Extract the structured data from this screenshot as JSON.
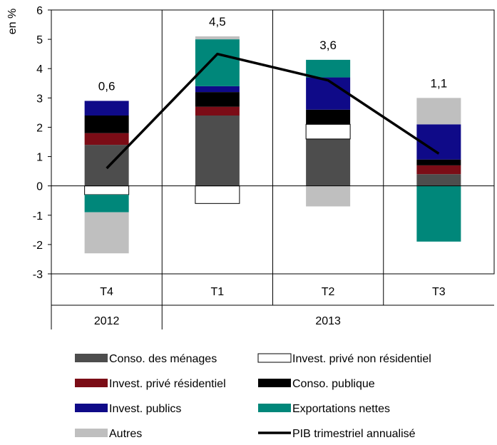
{
  "chart_data": {
    "type": "bar",
    "stacked": true,
    "ylabel": "en %",
    "ylim": [
      -3,
      6
    ],
    "yticks": [
      -3,
      -2,
      -1,
      0,
      1,
      2,
      3,
      4,
      5,
      6
    ],
    "ytick_labels": [
      "-3",
      "-2",
      "-1",
      "0",
      "1",
      "2",
      "3",
      "4",
      "5",
      "6"
    ],
    "categories": [
      "T4",
      "T1",
      "T2",
      "T3"
    ],
    "years": [
      {
        "label": "2012",
        "span": [
          0,
          0
        ]
      },
      {
        "label": "2013",
        "span": [
          1,
          3
        ]
      }
    ],
    "grid": "vertical-separators",
    "legend_position": "bottom",
    "series": [
      {
        "name": "Conso. des ménages",
        "color": "#4d4d4d",
        "values": [
          1.4,
          2.4,
          1.6,
          0.4
        ]
      },
      {
        "name": "Invest. privé non résidentiel",
        "color": "#ffffff",
        "values": [
          -0.3,
          -0.6,
          0.5,
          0.0
        ]
      },
      {
        "name": "Invest. privé résidentiel",
        "color": "#7b0c16",
        "values": [
          0.4,
          0.3,
          0.0,
          0.3
        ]
      },
      {
        "name": "Conso. publique",
        "color": "#000000",
        "values": [
          0.6,
          0.5,
          0.5,
          0.2
        ]
      },
      {
        "name": "Invest. publics",
        "color": "#0f0a88",
        "values": [
          0.5,
          0.2,
          1.1,
          1.2
        ]
      },
      {
        "name": "Exportations nettes",
        "color": "#00877a",
        "values": [
          -0.6,
          1.6,
          0.6,
          -1.9
        ]
      },
      {
        "name": "Autres",
        "color": "#bfbfbf",
        "values": [
          -1.4,
          0.1,
          -0.7,
          0.9
        ]
      }
    ],
    "line": {
      "name": "PIB trimestriel annualisé",
      "color": "#000000",
      "values": [
        0.6,
        4.5,
        3.6,
        1.1
      ],
      "labels": [
        "0,6",
        "4,5",
        "3,6",
        "1,1"
      ]
    }
  }
}
